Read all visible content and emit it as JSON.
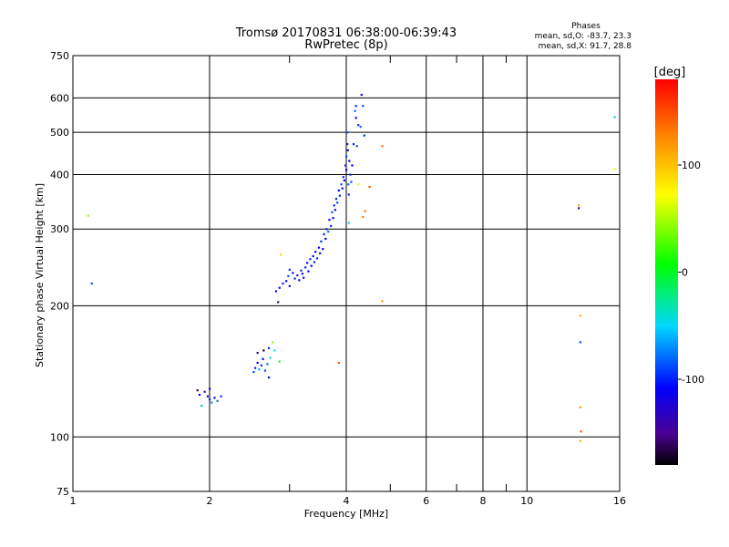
{
  "chart_data": {
    "type": "scatter",
    "title": "Tromsø 20170831 06:38:00-06:39:43",
    "subtitle": "RwPretec (8p)",
    "xlabel": "Frequency [MHz]",
    "ylabel": "Stationary phase Virtual Height [km]",
    "x_scale": "log",
    "y_scale": "log",
    "xlim": [
      1,
      16
    ],
    "ylim": [
      75,
      750
    ],
    "x_ticks": [
      1,
      2,
      4,
      6,
      8,
      10,
      16
    ],
    "y_ticks": [
      75,
      100,
      200,
      300,
      400,
      500,
      600,
      750
    ],
    "x_minor": [
      3,
      5,
      7,
      9
    ],
    "grid": true,
    "phases_header": "Phases",
    "phases_o": "mean, sd,O: -83.7, 23.3",
    "phases_x": "mean, sd,X:  91.7, 28.8",
    "colorbar": {
      "label": "[deg]",
      "range": [
        -180,
        180
      ],
      "ticks": [
        100,
        0,
        -100
      ],
      "colormap": "rainbow"
    },
    "series": [
      {
        "values": [
          [
            1.08,
            322,
            40
          ],
          [
            1.1,
            225,
            -90
          ],
          [
            1.88,
            128,
            -160
          ],
          [
            1.9,
            125,
            -110
          ],
          [
            1.92,
            118,
            -60
          ],
          [
            1.95,
            127,
            -150
          ],
          [
            1.98,
            124,
            -130
          ],
          [
            2.0,
            129,
            -120
          ],
          [
            2.0,
            122,
            -100
          ],
          [
            2.02,
            120,
            -70
          ],
          [
            2.05,
            123,
            -115
          ],
          [
            2.08,
            121,
            -80
          ],
          [
            2.12,
            124,
            -95
          ],
          [
            2.5,
            141,
            -90
          ],
          [
            2.52,
            144,
            -100
          ],
          [
            2.55,
            148,
            -120
          ],
          [
            2.55,
            156,
            -160
          ],
          [
            2.57,
            143,
            -60
          ],
          [
            2.6,
            146,
            -100
          ],
          [
            2.62,
            151,
            -110
          ],
          [
            2.63,
            158,
            -170
          ],
          [
            2.65,
            142,
            -90
          ],
          [
            2.68,
            147,
            -80
          ],
          [
            2.7,
            160,
            -100
          ],
          [
            2.7,
            137,
            -110
          ],
          [
            2.72,
            152,
            -50
          ],
          [
            2.75,
            165,
            40
          ],
          [
            2.78,
            158,
            -40
          ],
          [
            2.85,
            149,
            -20
          ],
          [
            2.8,
            216,
            -110
          ],
          [
            2.83,
            204,
            -160
          ],
          [
            2.85,
            220,
            -120
          ],
          [
            2.87,
            262,
            90
          ],
          [
            2.9,
            225,
            -100
          ],
          [
            2.95,
            228,
            -110
          ],
          [
            2.98,
            234,
            -90
          ],
          [
            3.0,
            222,
            -120
          ],
          [
            3.0,
            242,
            -100
          ],
          [
            3.05,
            238,
            -110
          ],
          [
            3.08,
            231,
            -100
          ],
          [
            3.12,
            235,
            -105
          ],
          [
            3.15,
            229,
            -110
          ],
          [
            3.18,
            241,
            -100
          ],
          [
            3.2,
            237,
            -110
          ],
          [
            3.22,
            232,
            -120
          ],
          [
            3.25,
            245,
            -100
          ],
          [
            3.28,
            251,
            -110
          ],
          [
            3.3,
            240,
            -110
          ],
          [
            3.33,
            256,
            -100
          ],
          [
            3.35,
            247,
            -110
          ],
          [
            3.38,
            260,
            -120
          ],
          [
            3.4,
            252,
            -100
          ],
          [
            3.42,
            266,
            -110
          ],
          [
            3.45,
            257,
            -100
          ],
          [
            3.48,
            272,
            -110
          ],
          [
            3.5,
            264,
            -120
          ],
          [
            3.52,
            281,
            -100
          ],
          [
            3.55,
            270,
            -110
          ],
          [
            3.57,
            292,
            -100
          ],
          [
            3.6,
            285,
            -110
          ],
          [
            3.62,
            300,
            -100
          ],
          [
            3.65,
            296,
            -80
          ],
          [
            3.67,
            315,
            -110
          ],
          [
            3.7,
            305,
            -100
          ],
          [
            3.72,
            328,
            -90
          ],
          [
            3.74,
            318,
            -110
          ],
          [
            3.76,
            340,
            -100
          ],
          [
            3.78,
            332,
            -120
          ],
          [
            3.8,
            352,
            -100
          ],
          [
            3.82,
            345,
            -90
          ],
          [
            3.85,
            368,
            -110
          ],
          [
            3.87,
            358,
            -100
          ],
          [
            3.9,
            380,
            -90
          ],
          [
            3.92,
            372,
            -110
          ],
          [
            3.94,
            395,
            -100
          ],
          [
            3.96,
            388,
            -120
          ],
          [
            3.98,
            420,
            -100
          ],
          [
            4.0,
            440,
            -90
          ],
          [
            4.0,
            410,
            -110
          ],
          [
            4.02,
            470,
            -100
          ],
          [
            4.02,
            500,
            -90
          ],
          [
            4.03,
            455,
            -120
          ],
          [
            4.04,
            380,
            -80
          ],
          [
            4.05,
            360,
            -100
          ],
          [
            4.05,
            310,
            -50
          ],
          [
            4.06,
            430,
            -110
          ],
          [
            4.08,
            400,
            -100
          ],
          [
            4.1,
            385,
            -90
          ],
          [
            4.12,
            420,
            -110
          ],
          [
            4.15,
            470,
            -100
          ],
          [
            4.18,
            560,
            -80
          ],
          [
            4.2,
            575,
            -100
          ],
          [
            4.2,
            540,
            -110
          ],
          [
            4.22,
            465,
            -90
          ],
          [
            4.25,
            520,
            -100
          ],
          [
            4.25,
            380,
            60
          ],
          [
            4.3,
            515,
            -80
          ],
          [
            4.32,
            610,
            -110
          ],
          [
            4.35,
            575,
            -90
          ],
          [
            4.38,
            492,
            -100
          ],
          [
            4.35,
            320,
            130
          ],
          [
            4.4,
            330,
            140
          ],
          [
            4.5,
            375,
            150
          ],
          [
            4.8,
            465,
            140
          ],
          [
            4.8,
            205,
            120
          ],
          [
            3.85,
            148,
            150
          ],
          [
            13.0,
            340,
            120
          ],
          [
            13.0,
            335,
            -150
          ],
          [
            13.1,
            190,
            110
          ],
          [
            13.1,
            165,
            -90
          ],
          [
            13.1,
            117,
            120
          ],
          [
            13.15,
            103,
            150
          ],
          [
            13.1,
            98,
            110
          ],
          [
            15.6,
            542,
            -40
          ],
          [
            15.6,
            412,
            60
          ]
        ]
      }
    ]
  }
}
